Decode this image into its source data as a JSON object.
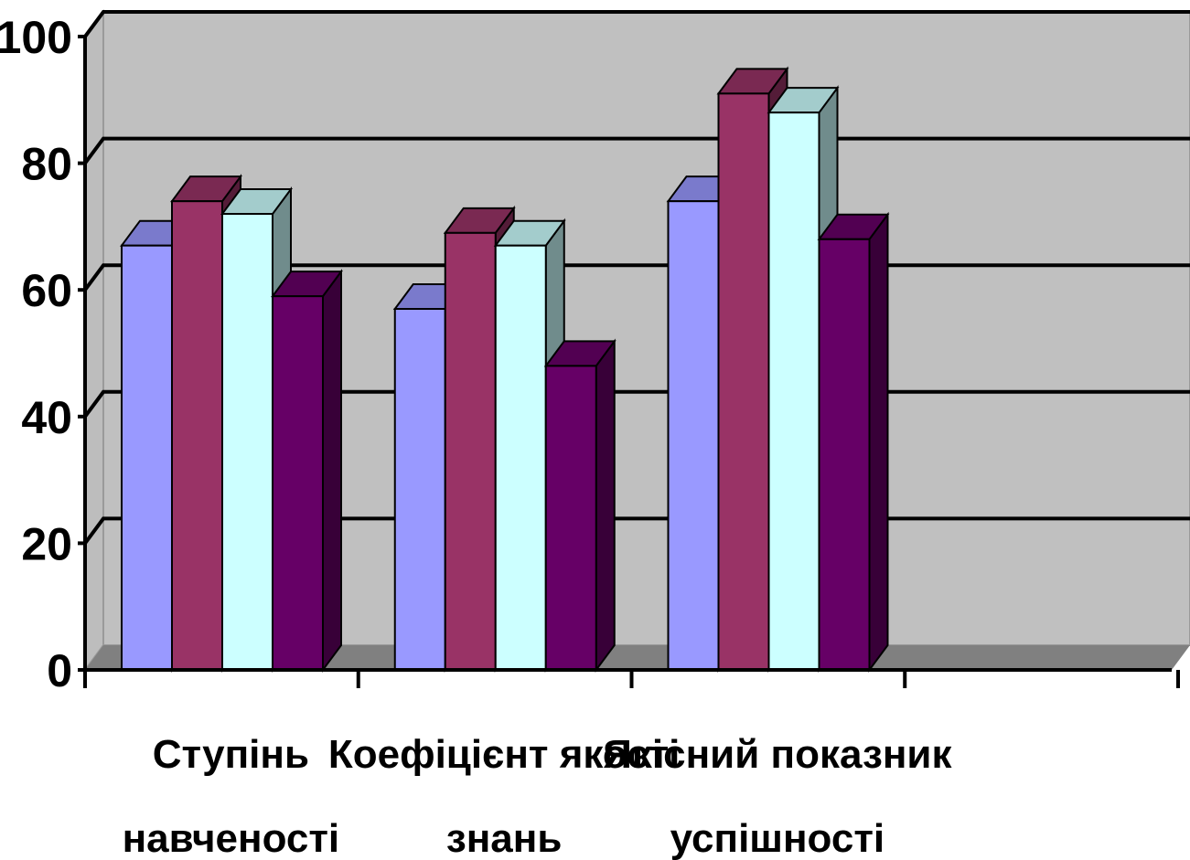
{
  "chart_data": {
    "type": "bar",
    "categories": [
      [
        "Ступінь",
        "навченості"
      ],
      [
        "Коефіцієнт якості",
        "знань"
      ],
      [
        "Якісний показник",
        "успішності"
      ],
      [
        "",
        ""
      ]
    ],
    "series": [
      {
        "values": [
          67,
          57,
          74,
          null
        ],
        "color": "#9999FF"
      },
      {
        "values": [
          74,
          69,
          91,
          null
        ],
        "color": "#993366"
      },
      {
        "values": [
          72,
          67,
          88,
          null
        ],
        "color": "#CCFFFF"
      },
      {
        "values": [
          59,
          48,
          68,
          null
        ],
        "color": "#660066"
      }
    ],
    "ylim": [
      0,
      100
    ],
    "yticks": [
      0,
      20,
      40,
      60,
      80,
      100
    ],
    "grid": true,
    "three_d": true,
    "colors": {
      "wall": "#C0C0C0",
      "floor": "#808080",
      "gridline": "#000000"
    }
  }
}
